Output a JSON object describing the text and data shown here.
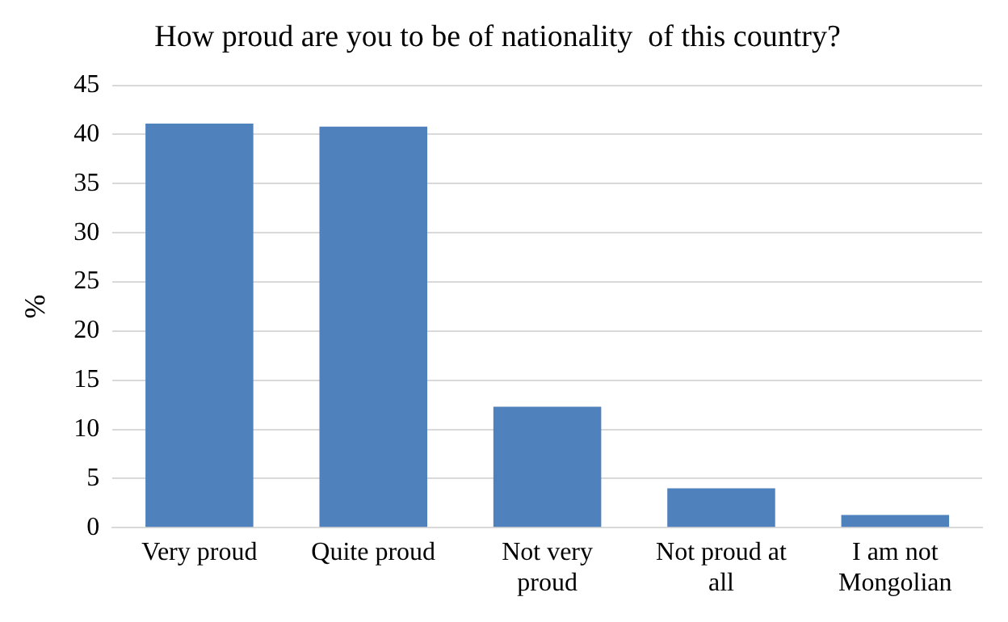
{
  "chart_data": {
    "type": "bar",
    "title": "How proud are you to be of nationality  of this country?",
    "ylabel": "%",
    "categories": [
      "Very proud",
      "Quite proud",
      "Not very proud",
      "Not proud at all",
      "I am not Mongolian"
    ],
    "values": [
      41.1,
      40.8,
      12.3,
      4.0,
      1.3
    ],
    "color": "#4f81bd",
    "ylim": [
      0,
      45
    ],
    "yticks": [
      0,
      5,
      10,
      15,
      20,
      25,
      30,
      35,
      40,
      45
    ],
    "grid": "y",
    "legend": false
  }
}
